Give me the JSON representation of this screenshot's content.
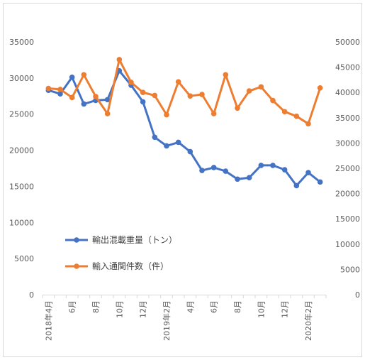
{
  "chart_data": {
    "type": "line",
    "x_tick_labels": [
      "2018年4月",
      "6月",
      "8月",
      "10月",
      "12月",
      "2019年2月",
      "4月",
      "6月",
      "8月",
      "10月",
      "12月",
      "2020年2月"
    ],
    "left_axis": {
      "min": 0,
      "max": 35000,
      "step": 5000,
      "ticks": [
        "0",
        "5000",
        "10000",
        "15000",
        "20000",
        "25000",
        "30000",
        "35000"
      ]
    },
    "right_axis": {
      "min": 0,
      "max": 50000,
      "step": 5000,
      "ticks": [
        "0",
        "5000",
        "10000",
        "15000",
        "20000",
        "25000",
        "30000",
        "35000",
        "40000",
        "45000",
        "50000"
      ]
    },
    "grid": false,
    "legend_position": "lower-left",
    "series": [
      {
        "name": "輸出混載重量（トン）",
        "axis": "left",
        "color": "#4472C4",
        "values": [
          28300,
          27800,
          30100,
          26400,
          26900,
          27000,
          31000,
          29000,
          26700,
          21800,
          20600,
          21100,
          19800,
          17200,
          17600,
          17100,
          16000,
          16200,
          17900,
          17900,
          17300,
          15100,
          16900,
          15600
        ]
      },
      {
        "name": "輸入通関件数（件）",
        "axis": "right",
        "color": "#ED7D31",
        "values": [
          40800,
          40600,
          39000,
          43500,
          39200,
          35800,
          46500,
          42000,
          40000,
          39400,
          35600,
          42100,
          39300,
          39600,
          35800,
          43500,
          36900,
          40300,
          41100,
          38400,
          36200,
          35300,
          33800,
          40900
        ]
      }
    ]
  }
}
